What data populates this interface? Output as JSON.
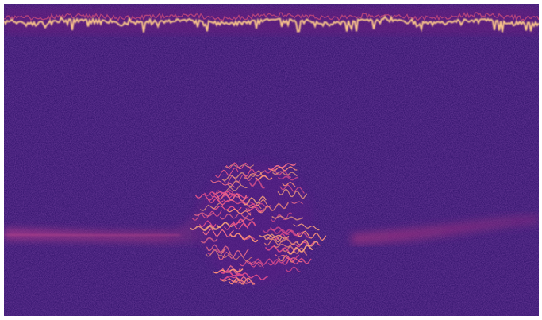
{
  "image": {
    "kind": "spectrogram",
    "colormap": [
      "#1a0a4e",
      "#3b0f70",
      "#8c2981",
      "#de4968",
      "#fe9f6d",
      "#fcfdbf"
    ],
    "background_color": "#2a0d66",
    "frame_color": "#ffffff",
    "features": [
      {
        "name": "top-harmonic-band",
        "description_hidden": true
      },
      {
        "name": "low-diffuse-band-left"
      },
      {
        "name": "chirp-cluster"
      },
      {
        "name": "low-diffuse-band-right"
      }
    ]
  }
}
